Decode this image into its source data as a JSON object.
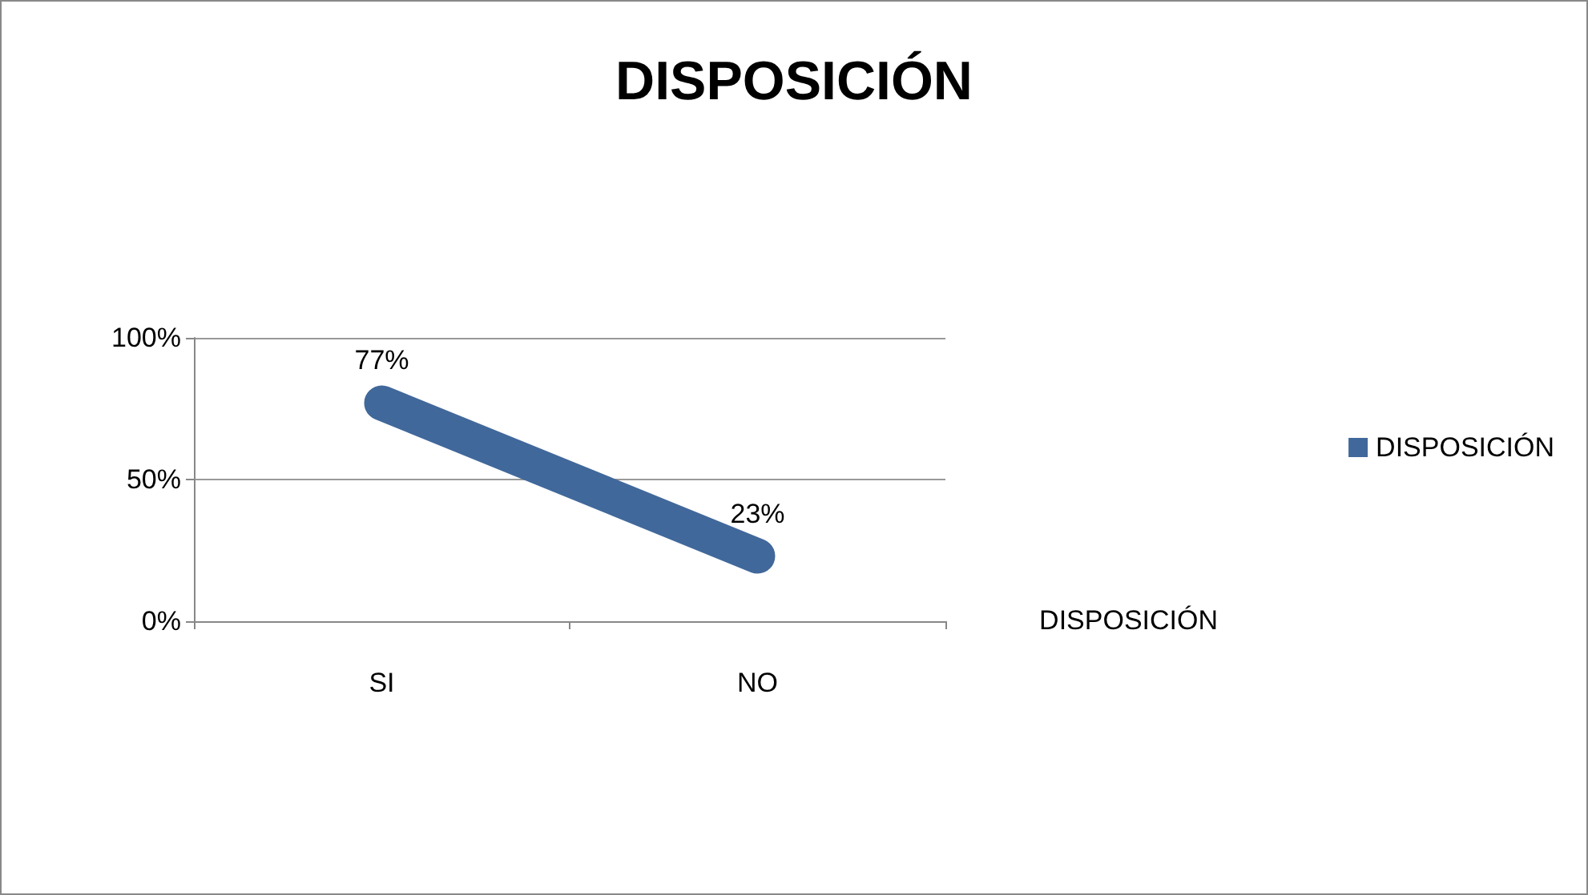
{
  "chart_data": {
    "type": "line",
    "title": "DISPOSICIÓN",
    "categories": [
      "SI",
      "NO"
    ],
    "series": [
      {
        "name": "DISPOSICIÓN",
        "color": "#41689b",
        "values": [
          77,
          23
        ],
        "value_labels": [
          "77%",
          "23%"
        ]
      }
    ],
    "ylim": [
      0,
      100
    ],
    "yticks": [
      {
        "value": 0,
        "label": "0%"
      },
      {
        "value": 50,
        "label": "50%"
      },
      {
        "value": 100,
        "label": "100%"
      }
    ],
    "grid": "y",
    "legend": "right",
    "marker": "none",
    "line_style": "solid",
    "annotations": [
      "DISPOSICIÓN"
    ]
  }
}
